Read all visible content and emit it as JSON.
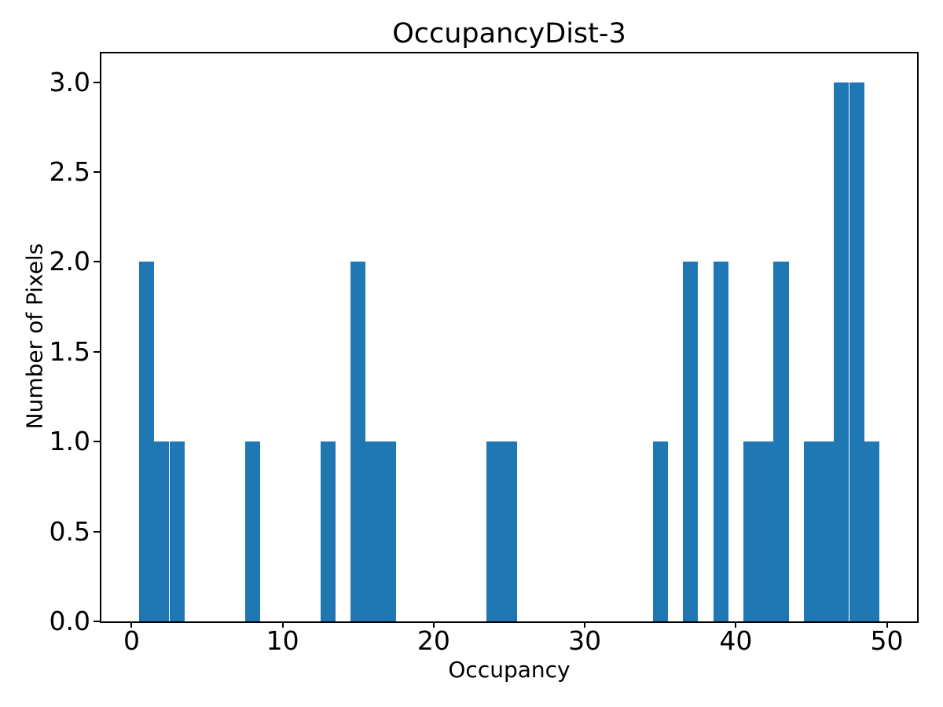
{
  "chart_data": {
    "type": "bar",
    "title": "OccupancyDist-3",
    "xlabel": "Occupancy",
    "ylabel": "Number of Pixels",
    "bar_color": "#1f77b4",
    "axis_color": "#000000",
    "background_color": "#ffffff",
    "grid": false,
    "legend": false,
    "xlim": [
      -2,
      52
    ],
    "ylim": [
      0,
      3.16
    ],
    "xticks": [
      0,
      10,
      20,
      30,
      40,
      50
    ],
    "xtick_labels": [
      "0",
      "10",
      "20",
      "30",
      "40",
      "50"
    ],
    "yticks": [
      0,
      0.5,
      1,
      1.5,
      2,
      2.5,
      3
    ],
    "ytick_labels": [
      "0.0",
      "0.5",
      "1.0",
      "1.5",
      "2.0",
      "2.5",
      "3.0"
    ],
    "bin_width": 1.0,
    "bins": [
      {
        "value": 1,
        "count": 2
      },
      {
        "value": 2,
        "count": 1
      },
      {
        "value": 3,
        "count": 1
      },
      {
        "value": 8,
        "count": 1
      },
      {
        "value": 13,
        "count": 1
      },
      {
        "value": 15,
        "count": 2
      },
      {
        "value": 16,
        "count": 1
      },
      {
        "value": 17,
        "count": 1
      },
      {
        "value": 24,
        "count": 1
      },
      {
        "value": 25,
        "count": 1
      },
      {
        "value": 35,
        "count": 1
      },
      {
        "value": 37,
        "count": 2
      },
      {
        "value": 39,
        "count": 2
      },
      {
        "value": 41,
        "count": 1
      },
      {
        "value": 42,
        "count": 1
      },
      {
        "value": 43,
        "count": 2
      },
      {
        "value": 45,
        "count": 1
      },
      {
        "value": 46,
        "count": 1
      },
      {
        "value": 47,
        "count": 3
      },
      {
        "value": 48,
        "count": 3
      },
      {
        "value": 49,
        "count": 1
      }
    ]
  }
}
